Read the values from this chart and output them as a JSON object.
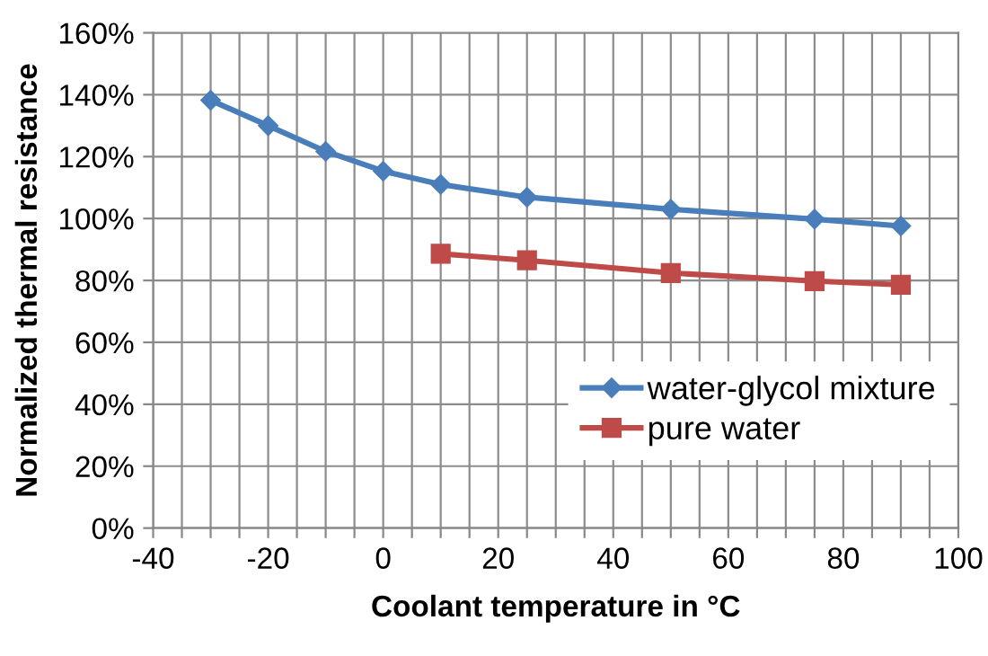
{
  "chart_data": {
    "type": "line",
    "xlabel": "Coolant temperature in °C",
    "ylabel": "Normalized thermal resistance",
    "series": [
      {
        "name": "water-glycol mixture",
        "color": "#4a7ebb",
        "marker": "diamond",
        "x": [
          -30,
          -20,
          -10,
          0,
          10,
          25,
          50,
          75,
          90
        ],
        "values": [
          138.2,
          130,
          121.7,
          115.3,
          111,
          106.9,
          103,
          99.8,
          97.6
        ]
      },
      {
        "name": "pure water",
        "color": "#be4b48",
        "marker": "square",
        "x": [
          10,
          25,
          50,
          75,
          90
        ],
        "values": [
          88.6,
          86.5,
          82.4,
          79.8,
          78.6
        ]
      }
    ],
    "xlim": [
      -40,
      100
    ],
    "xticks": [
      -40,
      {
        "value": -35,
        "label": null
      },
      {
        "value": -30,
        "label": null
      },
      {
        "value": -25,
        "label": null
      },
      -20,
      {
        "value": -15,
        "label": null
      },
      {
        "value": -10,
        "label": null
      },
      {
        "value": -5,
        "label": null
      },
      0,
      {
        "value": 5,
        "label": null
      },
      {
        "value": 10,
        "label": null
      },
      {
        "value": 15,
        "label": null
      },
      20,
      {
        "value": 25,
        "label": null
      },
      {
        "value": 30,
        "label": null
      },
      {
        "value": 35,
        "label": null
      },
      40,
      {
        "value": 45,
        "label": null
      },
      {
        "value": 50,
        "label": null
      },
      {
        "value": 55,
        "label": null
      },
      60,
      {
        "value": 65,
        "label": null
      },
      {
        "value": 70,
        "label": null
      },
      {
        "value": 75,
        "label": null
      },
      80,
      {
        "value": 85,
        "label": null
      },
      {
        "value": 90,
        "label": null
      },
      {
        "value": 95,
        "label": null
      },
      100
    ],
    "ylim": [
      0,
      160
    ],
    "yticks": [
      {
        "value": 0,
        "label": "0%"
      },
      {
        "value": 20,
        "label": "20%"
      },
      {
        "value": 40,
        "label": "40%"
      },
      {
        "value": 60,
        "label": "60%"
      },
      {
        "value": 80,
        "label": "80%"
      },
      {
        "value": 100,
        "label": "100%"
      },
      {
        "value": 120,
        "label": "120%"
      },
      {
        "value": 140,
        "label": "140%"
      },
      {
        "value": 160,
        "label": "160%"
      }
    ],
    "grid": true,
    "legend": "bottom right",
    "line_style": "solid"
  }
}
